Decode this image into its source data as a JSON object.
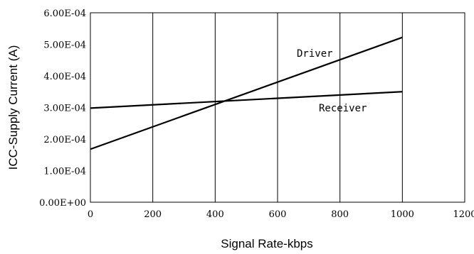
{
  "chart_data": {
    "type": "line",
    "xlabel": "Signal Rate-kbps",
    "ylabel": "ICC-Supply Current (A)",
    "xlim": [
      0,
      1200
    ],
    "ylim": [
      0,
      0.0006
    ],
    "x_ticks": [
      0,
      200,
      400,
      600,
      800,
      1000,
      1200
    ],
    "x_tick_labels": [
      "0",
      "200",
      "400",
      "600",
      "800",
      "1000",
      "1200"
    ],
    "y_ticks": [
      0,
      0.0001,
      0.0002,
      0.0003,
      0.0004,
      0.0005,
      0.0006
    ],
    "y_tick_labels": [
      "0.00E+00",
      "1.00E-04",
      "2.00E-04",
      "3.00E-04",
      "4.00E-04",
      "5.00E-04",
      "6.00E-04"
    ],
    "grid": {
      "vertical": true,
      "horizontal": false
    },
    "legend": "none",
    "series": [
      {
        "name": "Driver",
        "x": [
          0,
          1000
        ],
        "y": [
          0.000168,
          0.000522
        ]
      },
      {
        "name": "Receiver",
        "x": [
          0,
          1000
        ],
        "y": [
          0.000298,
          0.00035
        ]
      }
    ],
    "colors": {
      "line": "#000000",
      "grid": "#000000"
    }
  }
}
